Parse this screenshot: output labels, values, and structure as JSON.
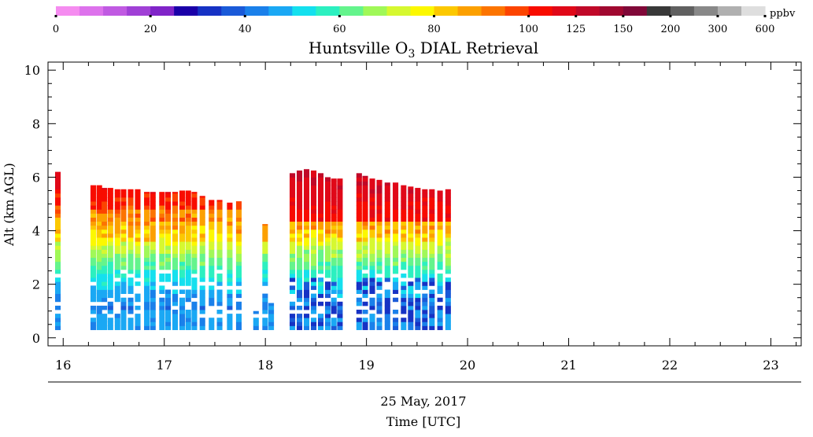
{
  "chart_data": {
    "type": "heatmap",
    "title_main": "Huntsville O",
    "title_sub": "3",
    "title_rest": " DIAL Retrieval",
    "ylabel": "Alt (km AGL)",
    "xlabel_date": "25 May, 2017",
    "xlabel": "Time [UTC]",
    "xlim": [
      15.85,
      23.3
    ],
    "ylim": [
      -0.3,
      10.3
    ],
    "x_ticks": [
      "16",
      "17",
      "18",
      "19",
      "20",
      "21",
      "22",
      "23"
    ],
    "y_ticks": [
      "0",
      "2",
      "4",
      "6",
      "8",
      "10"
    ],
    "colorbar": {
      "unit": "ppbv",
      "tick_labels": [
        "0",
        "20",
        "40",
        "60",
        "80",
        "100",
        "125",
        "150",
        "200",
        "300",
        "600"
      ],
      "colors": [
        "#f58cf0",
        "#dd72ec",
        "#c05ae2",
        "#a040d6",
        "#8024c8",
        "#1a00a8",
        "#1632c4",
        "#1a5ad8",
        "#1a80ea",
        "#1aa8f4",
        "#14e0ee",
        "#2cf0c0",
        "#64f48c",
        "#a0f858",
        "#d6f830",
        "#fcf800",
        "#fcc800",
        "#fca000",
        "#fc7400",
        "#fc4400",
        "#f80c00",
        "#e00818",
        "#c00828",
        "#a00830",
        "#800838",
        "#383838",
        "#606060",
        "#888888",
        "#b0b0b0",
        "#dedede"
      ]
    },
    "series": [
      {
        "name": "",
        "profiles": [
          {
            "x": 15.92,
            "top": 6.2,
            "bot": 0.3
          },
          {
            "x": 16.27,
            "top": 5.7,
            "bot": 0.3
          },
          {
            "x": 16.33,
            "top": 5.7,
            "bot": 0.3
          },
          {
            "x": 16.38,
            "top": 5.6,
            "bot": 0.3
          },
          {
            "x": 16.44,
            "top": 5.6,
            "bot": 0.3
          },
          {
            "x": 16.51,
            "top": 5.55,
            "bot": 0.3
          },
          {
            "x": 16.57,
            "top": 5.55,
            "bot": 0.3
          },
          {
            "x": 16.64,
            "top": 5.55,
            "bot": 0.3
          },
          {
            "x": 16.71,
            "top": 5.55,
            "bot": 0.3
          },
          {
            "x": 16.8,
            "top": 5.45,
            "bot": 0.3
          },
          {
            "x": 16.86,
            "top": 5.45,
            "bot": 0.3
          },
          {
            "x": 16.95,
            "top": 5.45,
            "bot": 0.3
          },
          {
            "x": 17.01,
            "top": 5.45,
            "bot": 0.3
          },
          {
            "x": 17.08,
            "top": 5.45,
            "bot": 0.3
          },
          {
            "x": 17.15,
            "top": 5.5,
            "bot": 0.3
          },
          {
            "x": 17.21,
            "top": 5.5,
            "bot": 0.3
          },
          {
            "x": 17.27,
            "top": 5.45,
            "bot": 0.3
          },
          {
            "x": 17.35,
            "top": 5.3,
            "bot": 0.3
          },
          {
            "x": 17.44,
            "top": 5.15,
            "bot": 0.3
          },
          {
            "x": 17.52,
            "top": 5.15,
            "bot": 0.3
          },
          {
            "x": 17.62,
            "top": 5.05,
            "bot": 0.3
          },
          {
            "x": 17.71,
            "top": 5.1,
            "bot": 0.3
          },
          {
            "x": 17.88,
            "top": 1.0,
            "bot": 0.3
          },
          {
            "x": 17.97,
            "top": 4.25,
            "bot": 0.3
          },
          {
            "x": 18.03,
            "top": 1.3,
            "bot": 0.3
          },
          {
            "x": 18.24,
            "top": 6.15,
            "bot": 0.3
          },
          {
            "x": 18.31,
            "top": 6.25,
            "bot": 0.3
          },
          {
            "x": 18.38,
            "top": 6.3,
            "bot": 0.3
          },
          {
            "x": 18.45,
            "top": 6.25,
            "bot": 0.3
          },
          {
            "x": 18.52,
            "top": 6.15,
            "bot": 0.3
          },
          {
            "x": 18.59,
            "top": 6.0,
            "bot": 0.3
          },
          {
            "x": 18.65,
            "top": 5.95,
            "bot": 0.3
          },
          {
            "x": 18.71,
            "top": 5.95,
            "bot": 0.3
          },
          {
            "x": 18.9,
            "top": 6.15,
            "bot": 0.3
          },
          {
            "x": 18.96,
            "top": 6.05,
            "bot": 0.3
          },
          {
            "x": 19.03,
            "top": 5.95,
            "bot": 0.3
          },
          {
            "x": 19.1,
            "top": 5.9,
            "bot": 0.3
          },
          {
            "x": 19.18,
            "top": 5.8,
            "bot": 0.3
          },
          {
            "x": 19.26,
            "top": 5.8,
            "bot": 0.3
          },
          {
            "x": 19.34,
            "top": 5.7,
            "bot": 0.3
          },
          {
            "x": 19.41,
            "top": 5.65,
            "bot": 0.3
          },
          {
            "x": 19.48,
            "top": 5.6,
            "bot": 0.3
          },
          {
            "x": 19.55,
            "top": 5.55,
            "bot": 0.3
          },
          {
            "x": 19.62,
            "top": 5.55,
            "bot": 0.3
          },
          {
            "x": 19.7,
            "top": 5.5,
            "bot": 0.3
          },
          {
            "x": 19.78,
            "top": 5.55,
            "bot": 0.3
          }
        ]
      }
    ]
  }
}
